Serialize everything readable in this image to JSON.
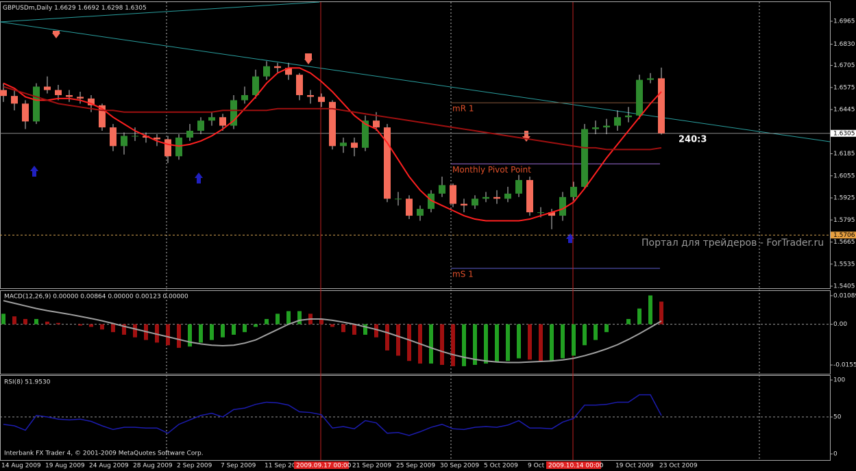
{
  "chart_data": {
    "type": "candlestick",
    "symbol": "GBPUSDm,Daily",
    "candles": [
      [
        1.656,
        1.66,
        1.649,
        1.6525
      ],
      [
        1.6525,
        1.656,
        1.644,
        1.648
      ],
      [
        1.648,
        1.65,
        1.633,
        1.6375
      ],
      [
        1.6375,
        1.66,
        1.636,
        1.658
      ],
      [
        1.658,
        1.664,
        1.654,
        1.656
      ],
      [
        1.656,
        1.659,
        1.65,
        1.653
      ],
      [
        1.653,
        1.656,
        1.649,
        1.652
      ],
      [
        1.652,
        1.655,
        1.648,
        1.651
      ],
      [
        1.651,
        1.653,
        1.643,
        1.647
      ],
      [
        1.647,
        1.648,
        1.632,
        1.634
      ],
      [
        1.634,
        1.636,
        1.62,
        1.623
      ],
      [
        1.623,
        1.631,
        1.618,
        1.629
      ],
      [
        1.629,
        1.634,
        1.626,
        1.629
      ],
      [
        1.629,
        1.631,
        1.625,
        1.628
      ],
      [
        1.628,
        1.63,
        1.623,
        1.627
      ],
      [
        1.627,
        1.629,
        1.613,
        1.617
      ],
      [
        1.617,
        1.63,
        1.615,
        1.628
      ],
      [
        1.628,
        1.636,
        1.626,
        1.632
      ],
      [
        1.632,
        1.64,
        1.63,
        1.638
      ],
      [
        1.638,
        1.643,
        1.635,
        1.64
      ],
      [
        1.64,
        1.642,
        1.632,
        1.635
      ],
      [
        1.635,
        1.653,
        1.633,
        1.65
      ],
      [
        1.65,
        1.658,
        1.648,
        1.653
      ],
      [
        1.653,
        1.668,
        1.651,
        1.664
      ],
      [
        1.664,
        1.673,
        1.662,
        1.67
      ],
      [
        1.67,
        1.672,
        1.666,
        1.669
      ],
      [
        1.669,
        1.672,
        1.662,
        1.665
      ],
      [
        1.665,
        1.666,
        1.65,
        1.653
      ],
      [
        1.653,
        1.656,
        1.648,
        1.652
      ],
      [
        1.652,
        1.654,
        1.646,
        1.649
      ],
      [
        1.649,
        1.65,
        1.621,
        1.623
      ],
      [
        1.623,
        1.628,
        1.619,
        1.625
      ],
      [
        1.625,
        1.628,
        1.617,
        1.622
      ],
      [
        1.622,
        1.641,
        1.62,
        1.638
      ],
      [
        1.638,
        1.643,
        1.632,
        1.634
      ],
      [
        1.634,
        1.636,
        1.59,
        1.592
      ],
      [
        1.592,
        1.596,
        1.588,
        1.592
      ],
      [
        1.592,
        1.594,
        1.58,
        1.582
      ],
      [
        1.582,
        1.588,
        1.579,
        1.586
      ],
      [
        1.586,
        1.597,
        1.584,
        1.595
      ],
      [
        1.595,
        1.605,
        1.593,
        1.6
      ],
      [
        1.6,
        1.601,
        1.587,
        1.589
      ],
      [
        1.589,
        1.592,
        1.584,
        1.588
      ],
      [
        1.588,
        1.594,
        1.586,
        1.592
      ],
      [
        1.592,
        1.596,
        1.59,
        1.593
      ],
      [
        1.593,
        1.597,
        1.589,
        1.592
      ],
      [
        1.592,
        1.599,
        1.59,
        1.595
      ],
      [
        1.595,
        1.606,
        1.593,
        1.603
      ],
      [
        1.603,
        1.605,
        1.582,
        1.584
      ],
      [
        1.584,
        1.587,
        1.581,
        1.584
      ],
      [
        1.584,
        1.586,
        1.574,
        1.582
      ],
      [
        1.582,
        1.596,
        1.579,
        1.593
      ],
      [
        1.593,
        1.602,
        1.591,
        1.599
      ],
      [
        1.599,
        1.636,
        1.598,
        1.633
      ],
      [
        1.633,
        1.638,
        1.63,
        1.634
      ],
      [
        1.634,
        1.639,
        1.63,
        1.635
      ],
      [
        1.635,
        1.644,
        1.632,
        1.64
      ],
      [
        1.64,
        1.646,
        1.637,
        1.641
      ],
      [
        1.641,
        1.665,
        1.639,
        1.662
      ],
      [
        1.662,
        1.666,
        1.66,
        1.6629
      ],
      [
        1.6629,
        1.6692,
        1.6298,
        1.6305
      ]
    ],
    "bull_color": "#2e8b2e",
    "bear_color": "#f56c5a",
    "ylim": [
      1.5393,
      1.7078
    ],
    "yticks": [
      1.6965,
      {
        "value": 1.683,
        "label": "1.6830"
      },
      1.6705,
      1.6575,
      1.6445,
      1.6185,
      1.6055,
      1.5925,
      1.5795,
      1.5665,
      1.5535,
      1.5405
    ],
    "hline": 1.5706,
    "timer": "240:3",
    "categories": [
      "14 Aug 2009",
      null,
      null,
      null,
      "19 Aug 2009",
      null,
      null,
      null,
      "24 Aug 2009",
      null,
      null,
      null,
      "28 Aug 2009",
      null,
      null,
      null,
      "2 Sep 2009",
      null,
      null,
      null,
      "7 Sep 2009",
      null,
      null,
      null,
      "11 Sep 20",
      null,
      null,
      null,
      null,
      null,
      null,
      null,
      "21 Sep 2009",
      null,
      null,
      null,
      "25 Sep 2009",
      null,
      null,
      null,
      "30 Sep 2009",
      null,
      null,
      null,
      "5 Oct 2009",
      null,
      null,
      null,
      "9 Oct",
      null,
      null,
      null,
      null,
      null,
      null,
      null,
      "19 Oct 2009",
      null,
      null,
      null,
      "23 Oct 2009"
    ],
    "vlines": [
      {
        "bar": 29,
        "label": "2009.09.17 00:00"
      },
      {
        "bar": 52,
        "label": "2009.10.14 00:00"
      }
    ],
    "moving_averages": [
      {
        "color": "#ff2020",
        "values": [
          1.66,
          1.657,
          1.652,
          1.65,
          1.65,
          1.651,
          1.651,
          1.65,
          1.648,
          1.645,
          1.64,
          1.636,
          1.632,
          1.629,
          1.626,
          1.624,
          1.623,
          1.624,
          1.626,
          1.629,
          1.633,
          1.638,
          1.645,
          1.652,
          1.66,
          1.666,
          1.669,
          1.669,
          1.666,
          1.661,
          1.655,
          1.648,
          1.641,
          1.636,
          1.633,
          1.625,
          1.615,
          1.605,
          1.597,
          1.591,
          1.588,
          1.585,
          1.582,
          1.58,
          1.579,
          1.579,
          1.579,
          1.579,
          1.58,
          1.582,
          1.584,
          1.586,
          1.59,
          1.598,
          1.607,
          1.616,
          1.624,
          1.632,
          1.64,
          1.648,
          1.655
        ]
      },
      {
        "color": "#a01010",
        "values": [
          1.658,
          1.656,
          1.654,
          1.652,
          1.65,
          1.648,
          1.647,
          1.646,
          1.645,
          1.644,
          1.644,
          1.643,
          1.643,
          1.643,
          1.643,
          1.643,
          1.643,
          1.643,
          1.643,
          1.643,
          1.644,
          1.644,
          1.644,
          1.644,
          1.644,
          1.645,
          1.645,
          1.645,
          1.645,
          1.645,
          1.645,
          1.644,
          1.643,
          1.642,
          1.641,
          1.64,
          1.639,
          1.638,
          1.637,
          1.636,
          1.635,
          1.634,
          1.633,
          1.632,
          1.631,
          1.63,
          1.629,
          1.628,
          1.627,
          1.626,
          1.625,
          1.624,
          1.623,
          1.622,
          1.622,
          1.621,
          1.621,
          1.621,
          1.621,
          1.621,
          1.622
        ]
      }
    ],
    "pivots": [
      {
        "label": "mR 1",
        "value": 1.6485,
        "color": "#8b5a3c"
      },
      {
        "label": "Monthly Pivot Point",
        "value": 1.6125,
        "color": "#9b6bd6"
      },
      {
        "label": "mS 1",
        "value": 1.551,
        "color": "#6060d0"
      }
    ],
    "watermark": "Портал для трейдеров - ForTrader.ru",
    "copyright": "Interbank FX Trader 4, © 2001-2009 MetaQuotes Software Corp.",
    "macd": {
      "title": "MACD(12,26,9) 0.00000 0.00864 0.00000 0.00123 0.00000",
      "histogram": [
        0.004,
        0.003,
        0.002,
        0.002,
        0.001,
        0.0005,
        0.0,
        -0.0005,
        -0.001,
        -0.002,
        -0.003,
        -0.004,
        -0.005,
        -0.006,
        -0.007,
        -0.008,
        -0.009,
        -0.0085,
        -0.007,
        -0.006,
        -0.005,
        -0.004,
        -0.003,
        -0.001,
        0.002,
        0.004,
        0.005,
        0.005,
        0.004,
        0.002,
        -0.001,
        -0.003,
        -0.004,
        -0.004,
        -0.005,
        -0.01,
        -0.012,
        -0.014,
        -0.015,
        -0.015,
        -0.0155,
        -0.016,
        -0.016,
        -0.0155,
        -0.015,
        -0.0145,
        -0.014,
        -0.013,
        -0.0135,
        -0.014,
        -0.014,
        -0.013,
        -0.012,
        -0.008,
        -0.006,
        -0.003,
        0.0,
        0.002,
        0.006,
        0.011,
        0.00864
      ],
      "signal": [
        0.009,
        0.008,
        0.007,
        0.006,
        0.0052,
        0.0045,
        0.0038,
        0.003,
        0.0022,
        0.0013,
        0.0003,
        -0.0008,
        -0.0018,
        -0.0028,
        -0.0038,
        -0.0048,
        -0.0058,
        -0.0068,
        -0.0075,
        -0.008,
        -0.0082,
        -0.008,
        -0.0072,
        -0.006,
        -0.004,
        -0.002,
        0.0,
        0.0015,
        0.002,
        0.002,
        0.0015,
        0.0008,
        0.0,
        -0.001,
        -0.002,
        -0.0032,
        -0.0046,
        -0.006,
        -0.0075,
        -0.009,
        -0.0104,
        -0.0116,
        -0.0126,
        -0.0134,
        -0.014,
        -0.0144,
        -0.0146,
        -0.0146,
        -0.0144,
        -0.0142,
        -0.014,
        -0.0136,
        -0.013,
        -0.012,
        -0.0108,
        -0.0094,
        -0.0078,
        -0.0058,
        -0.0036,
        -0.0012,
        0.00123
      ],
      "ylim": [
        -0.0189,
        0.0127
      ],
      "yticks": [
        0.01089,
        {
          "value": 0,
          "label": "0.00"
        },
        -0.01554
      ],
      "up_color": "#22a022",
      "down_color": "#a01010",
      "signal_color": "#a0a0a0"
    },
    "rsi": {
      "title": "RSI(8) 51.9530",
      "values": [
        40,
        38,
        32,
        52,
        50,
        47,
        46,
        47,
        44,
        38,
        33,
        36,
        36,
        35,
        35,
        28,
        40,
        46,
        52,
        55,
        50,
        60,
        62,
        67,
        70,
        69,
        66,
        57,
        56,
        53,
        35,
        37,
        34,
        45,
        42,
        28,
        29,
        25,
        30,
        36,
        40,
        34,
        33,
        36,
        37,
        36,
        39,
        45,
        35,
        35,
        34,
        43,
        48,
        66,
        66,
        67,
        70,
        70,
        80,
        80,
        51.953
      ],
      "ylim": [
        -8.3,
        105.6
      ],
      "yticks": [
        0,
        50,
        100
      ],
      "color": "#1c1cb0"
    }
  }
}
